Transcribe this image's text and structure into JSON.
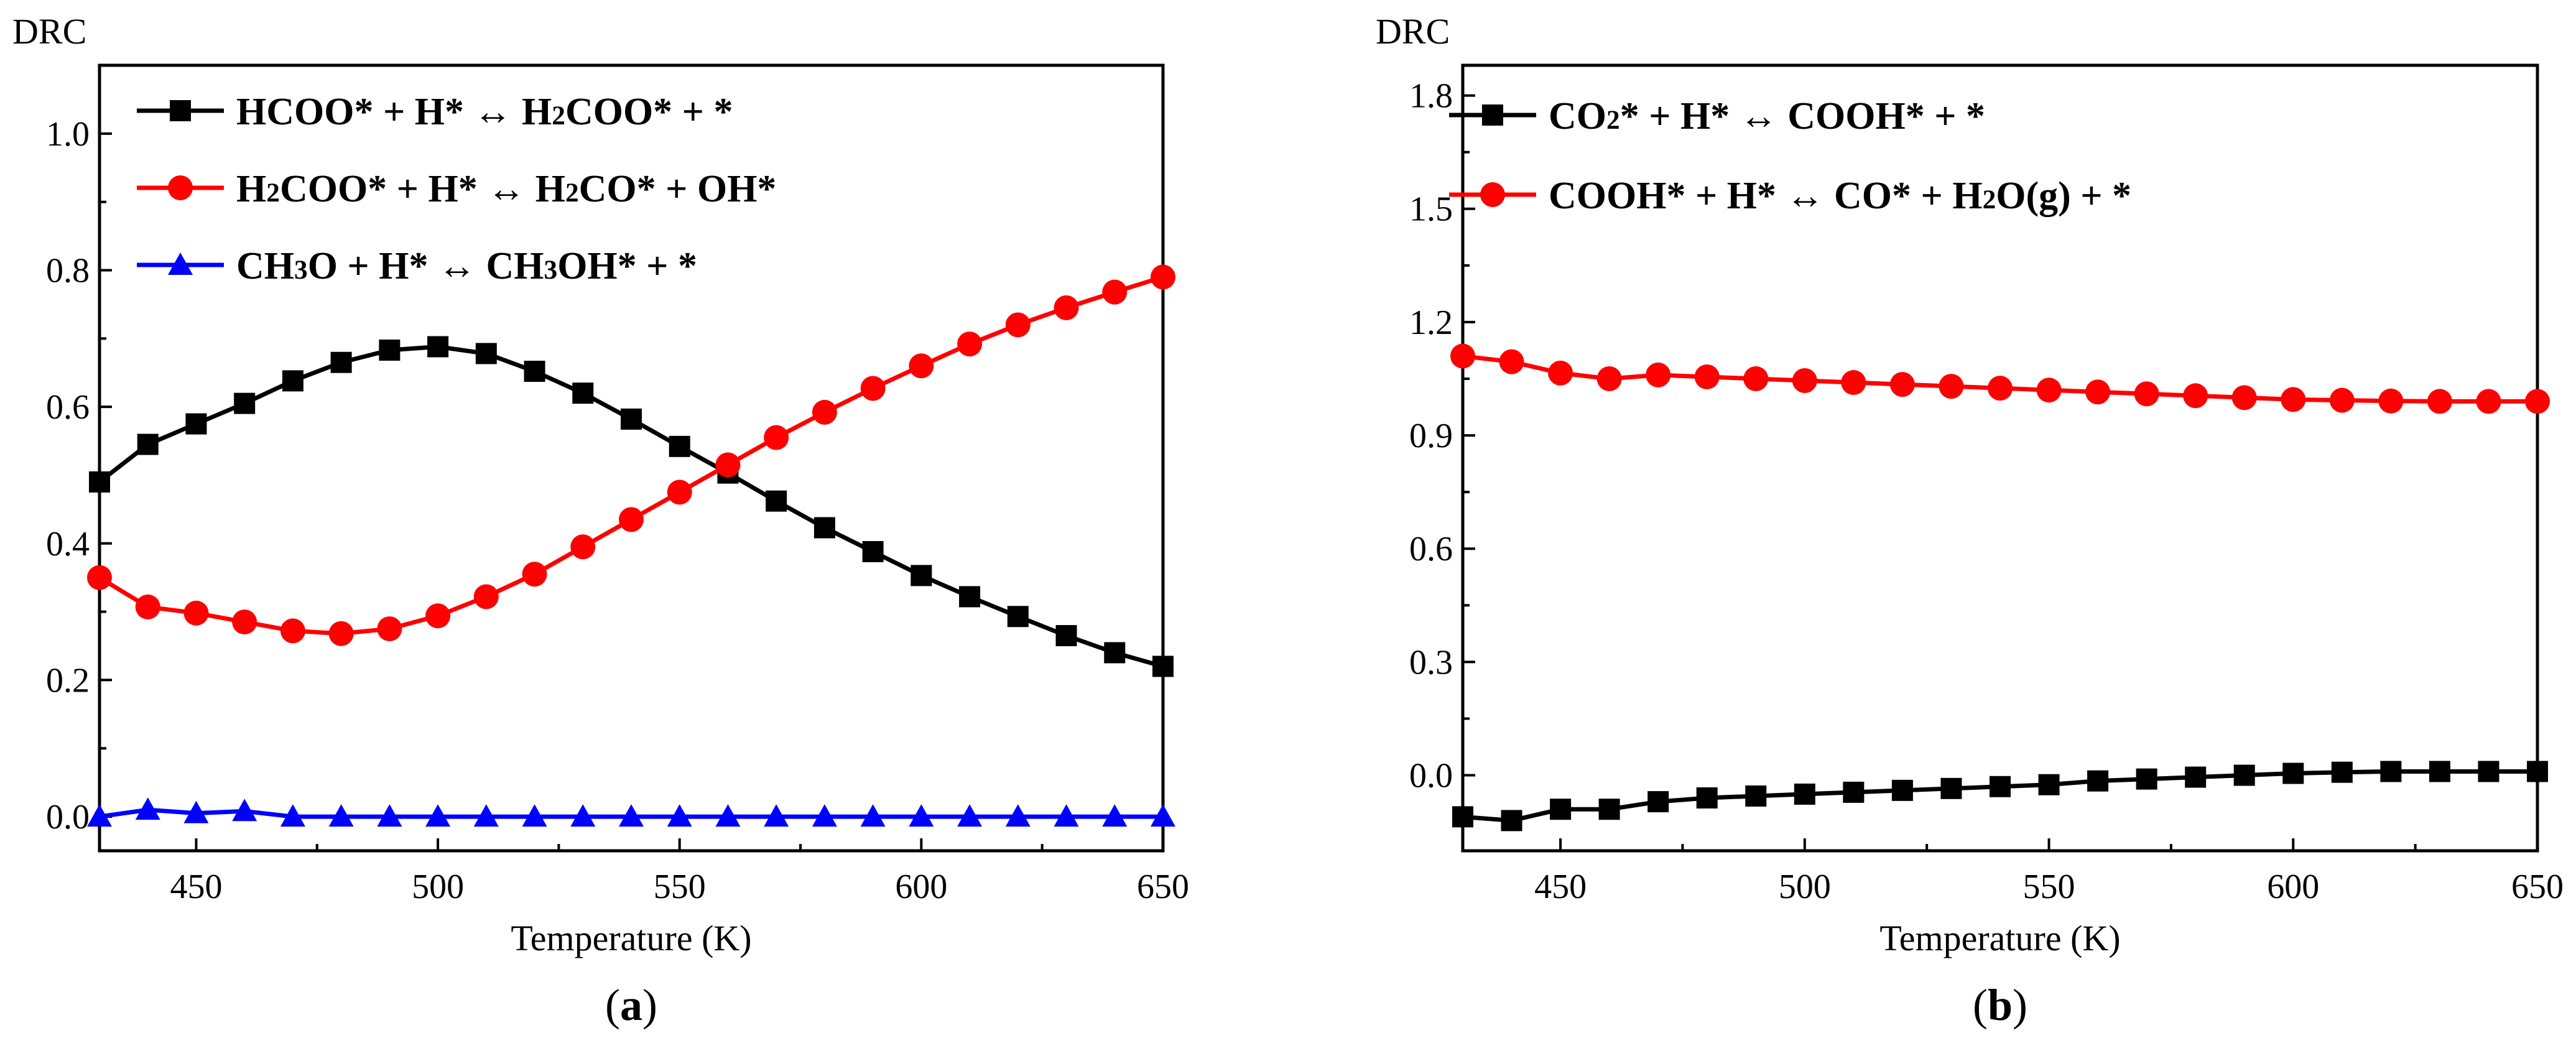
{
  "figure": {
    "panels": [
      {
        "label_open": "(",
        "label_letter": "a",
        "label_close": ")"
      },
      {
        "label_open": "(",
        "label_letter": "b",
        "label_close": ")"
      }
    ]
  },
  "chart_data": [
    {
      "type": "line",
      "title": "",
      "ylabel": "DRC",
      "xlabel": "Temperature (K)",
      "xlim": [
        430,
        650
      ],
      "ylim": [
        -0.05,
        1.1
      ],
      "xticks": [
        450,
        500,
        550,
        600,
        650
      ],
      "xtick_labels": [
        "450",
        "500",
        "550",
        "600",
        "650"
      ],
      "yticks": [
        0.0,
        0.2,
        0.4,
        0.6,
        0.8,
        1.0
      ],
      "ytick_labels": [
        "0.0",
        "0.2",
        "0.4",
        "0.6",
        "0.8",
        "1.0"
      ],
      "grid": false,
      "legend_position": "top-left",
      "x": [
        430,
        440,
        450,
        460,
        470,
        480,
        490,
        500,
        510,
        520,
        530,
        540,
        550,
        560,
        570,
        580,
        590,
        600,
        610,
        620,
        630,
        640,
        650
      ],
      "series": [
        {
          "name": "HCOO* + H* ↔ H₂COO* + *",
          "color": "#000000",
          "marker": "square",
          "values": [
            0.49,
            0.545,
            0.575,
            0.605,
            0.638,
            0.665,
            0.683,
            0.688,
            0.678,
            0.652,
            0.62,
            0.582,
            0.542,
            0.503,
            0.462,
            0.423,
            0.388,
            0.353,
            0.322,
            0.293,
            0.265,
            0.24,
            0.22
          ]
        },
        {
          "name": "H₂COO* + H* ↔ H₂CO* + OH*",
          "color": "#ff0000",
          "marker": "circle",
          "values": [
            0.35,
            0.307,
            0.298,
            0.285,
            0.272,
            0.268,
            0.275,
            0.294,
            0.322,
            0.355,
            0.395,
            0.435,
            0.475,
            0.515,
            0.555,
            0.592,
            0.627,
            0.66,
            0.692,
            0.72,
            0.745,
            0.768,
            0.79
          ]
        },
        {
          "name": "CH₃O + H* ↔ CH₃OH* + *",
          "color": "#0000ff",
          "marker": "triangle",
          "values": [
            0.0,
            0.01,
            0.005,
            0.008,
            0.0,
            0.0,
            0.0,
            0.0,
            0.0,
            0.0,
            0.0,
            0.0,
            0.0,
            0.0,
            0.0,
            0.0,
            0.0,
            0.0,
            0.0,
            0.0,
            0.0,
            0.0,
            0.0
          ]
        }
      ]
    },
    {
      "type": "line",
      "title": "",
      "ylabel": "DRC",
      "xlabel": "Temperature (K)",
      "xlim": [
        430,
        650
      ],
      "ylim": [
        -0.2,
        1.88
      ],
      "xticks": [
        450,
        500,
        550,
        600,
        650
      ],
      "xtick_labels": [
        "450",
        "500",
        "550",
        "600",
        "650"
      ],
      "yticks": [
        0.0,
        0.3,
        0.6,
        0.9,
        1.2,
        1.5,
        1.8
      ],
      "ytick_labels": [
        "0.0",
        "0.3",
        "0.6",
        "0.9",
        "1.2",
        "1.5",
        "1.8"
      ],
      "grid": false,
      "legend_position": "top-left",
      "x": [
        430,
        440,
        450,
        460,
        470,
        480,
        490,
        500,
        510,
        520,
        530,
        540,
        550,
        560,
        570,
        580,
        590,
        600,
        610,
        620,
        630,
        640,
        650
      ],
      "series": [
        {
          "name": "CO₂* + H* ↔ COOH* + *",
          "color": "#000000",
          "marker": "square",
          "values": [
            -0.11,
            -0.12,
            -0.09,
            -0.09,
            -0.07,
            -0.06,
            -0.055,
            -0.05,
            -0.045,
            -0.04,
            -0.035,
            -0.03,
            -0.025,
            -0.015,
            -0.01,
            -0.005,
            0.0,
            0.005,
            0.008,
            0.01,
            0.01,
            0.01,
            0.01
          ]
        },
        {
          "name": "COOH* + H* ↔ CO* + H₂O(g) + *",
          "color": "#ff0000",
          "marker": "circle",
          "values": [
            1.11,
            1.095,
            1.065,
            1.05,
            1.06,
            1.055,
            1.05,
            1.045,
            1.04,
            1.035,
            1.03,
            1.025,
            1.02,
            1.015,
            1.01,
            1.005,
            1.0,
            0.995,
            0.993,
            0.991,
            0.99,
            0.99,
            0.99
          ]
        }
      ]
    }
  ]
}
